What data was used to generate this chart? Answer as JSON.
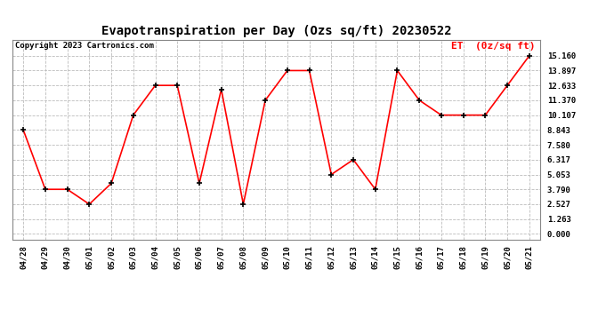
{
  "title": "Evapotranspiration per Day (Ozs sq/ft) 20230522",
  "copyright": "Copyright 2023 Cartronics.com",
  "legend_label": "ET  (0z/sq ft)",
  "dates": [
    "04/28",
    "04/29",
    "04/30",
    "05/01",
    "05/02",
    "05/03",
    "05/04",
    "05/05",
    "05/06",
    "05/07",
    "05/08",
    "05/09",
    "05/10",
    "05/11",
    "05/12",
    "05/13",
    "05/14",
    "05/15",
    "05/16",
    "05/17",
    "05/18",
    "05/19",
    "05/20",
    "05/21"
  ],
  "values": [
    8.843,
    3.79,
    3.79,
    2.527,
    4.3,
    10.107,
    12.633,
    12.633,
    4.3,
    12.3,
    2.527,
    11.37,
    13.897,
    13.897,
    5.053,
    6.317,
    3.79,
    13.897,
    11.37,
    10.107,
    10.107,
    10.107,
    12.633,
    15.16
  ],
  "yticks": [
    0.0,
    1.263,
    2.527,
    3.79,
    5.053,
    6.317,
    7.58,
    8.843,
    10.107,
    11.37,
    12.633,
    13.897,
    15.16
  ],
  "line_color": "red",
  "marker_color": "black",
  "grid_color": "#bbbbbb",
  "background_color": "#ffffff",
  "title_fontsize": 10,
  "copyright_fontsize": 6.5,
  "legend_fontsize": 8,
  "tick_fontsize": 6.5,
  "ylim": [
    -0.5,
    16.5
  ],
  "border_color": "#888888"
}
